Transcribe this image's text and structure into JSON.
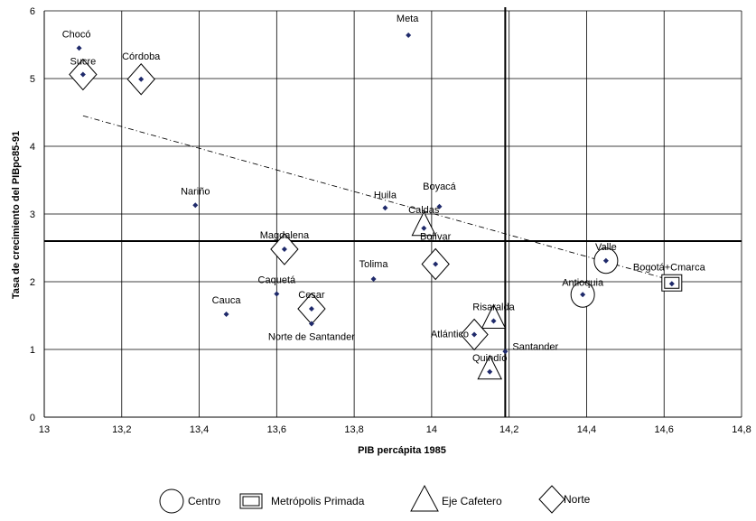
{
  "chart_data": {
    "type": "scatter",
    "title": "",
    "xlabel": "PIB percápita 1985",
    "ylabel": "Tasa de crecimiento del PIBpc85-91",
    "xlim": [
      13,
      14.8
    ],
    "ylim": [
      0,
      6
    ],
    "x_ticks": [
      "13",
      "13,2",
      "13,4",
      "13,6",
      "13,8",
      "14",
      "14,2",
      "14,4",
      "14,6",
      "14,8"
    ],
    "y_ticks": [
      "0",
      "1",
      "2",
      "3",
      "4",
      "5",
      "6"
    ],
    "grid": true,
    "reference_lines": {
      "vertical_x": 14.19,
      "horizontal_y": 2.6
    },
    "trendline": {
      "style": "dash-dot",
      "from": [
        13.1,
        4.45
      ],
      "to": [
        14.62,
        2.02
      ]
    },
    "points": [
      {
        "label": "Chocó",
        "x": 13.09,
        "y": 5.45,
        "marker": ""
      },
      {
        "label": "Sucre",
        "x": 13.1,
        "y": 5.06,
        "marker": "diamond"
      },
      {
        "label": "Córdoba",
        "x": 13.25,
        "y": 4.99,
        "marker": "diamond"
      },
      {
        "label": "Meta",
        "x": 13.94,
        "y": 5.64,
        "marker": ""
      },
      {
        "label": "Nariño",
        "x": 13.39,
        "y": 3.13,
        "marker": ""
      },
      {
        "label": "Huila",
        "x": 13.88,
        "y": 3.09,
        "marker": ""
      },
      {
        "label": "Boyacá",
        "x": 14.02,
        "y": 3.11,
        "marker": ""
      },
      {
        "label": "Caldas",
        "x": 13.98,
        "y": 2.79,
        "marker": "triangle"
      },
      {
        "label": "Magdalena",
        "x": 13.62,
        "y": 2.48,
        "marker": "diamond"
      },
      {
        "label": "Bolívar",
        "x": 14.01,
        "y": 2.26,
        "marker": "diamond"
      },
      {
        "label": "Tolima",
        "x": 13.85,
        "y": 2.04,
        "marker": ""
      },
      {
        "label": "Valle",
        "x": 14.45,
        "y": 2.31,
        "marker": "circle"
      },
      {
        "label": "Bogotá+Cmarca",
        "x": 14.62,
        "y": 1.97,
        "marker": "square"
      },
      {
        "label": "Antioquia",
        "x": 14.39,
        "y": 1.81,
        "marker": "circle"
      },
      {
        "label": "Caquetá",
        "x": 13.6,
        "y": 1.82,
        "marker": ""
      },
      {
        "label": "Cesar",
        "x": 13.69,
        "y": 1.6,
        "marker": "diamond"
      },
      {
        "label": "Cauca",
        "x": 13.47,
        "y": 1.52,
        "marker": ""
      },
      {
        "label": "Norte de Santander",
        "x": 13.69,
        "y": 1.38,
        "marker": ""
      },
      {
        "label": "Risaralda",
        "x": 14.16,
        "y": 1.42,
        "marker": "triangle"
      },
      {
        "label": "Atlántico",
        "x": 14.11,
        "y": 1.22,
        "marker": "diamond"
      },
      {
        "label": "Santander",
        "x": 14.19,
        "y": 0.97,
        "marker": ""
      },
      {
        "label": "Quindío",
        "x": 14.15,
        "y": 0.67,
        "marker": "triangle"
      }
    ],
    "legend": {
      "placement": "bottom",
      "items": [
        {
          "shape": "circle",
          "label": "Centro"
        },
        {
          "shape": "square",
          "label": "Metrópolis Primada"
        },
        {
          "shape": "triangle",
          "label": "Eje Cafetero"
        },
        {
          "shape": "diamond",
          "label": "Norte"
        }
      ]
    },
    "colors": {
      "point": "#1f2a6b",
      "grid": "#000000",
      "axis": "#000000"
    }
  }
}
